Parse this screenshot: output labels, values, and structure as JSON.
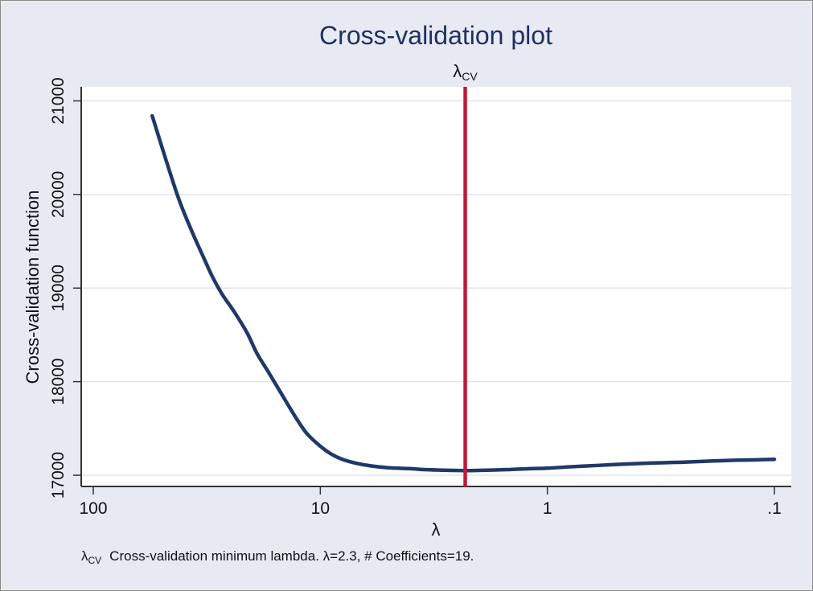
{
  "chart_data": {
    "type": "line",
    "title": "Cross-validation plot",
    "xlabel": "λ",
    "ylabel": "Cross-validation function",
    "x_scale": "log-reversed",
    "xlim": [
      100,
      0.1
    ],
    "ylim": [
      16880,
      21150
    ],
    "x_ticks": [
      100,
      10,
      1,
      0.1
    ],
    "x_tick_labels": [
      "100",
      "10",
      "1",
      ".1"
    ],
    "y_ticks": [
      17000,
      18000,
      19000,
      20000,
      21000
    ],
    "y_tick_labels": [
      "17000",
      "18000",
      "19000",
      "20000",
      "21000"
    ],
    "grid": true,
    "series": [
      {
        "x": [
          55,
          48,
          42,
          37,
          33,
          30,
          27,
          24,
          21,
          19,
          17,
          15,
          13,
          11.5,
          10,
          9,
          8,
          7,
          6,
          5,
          4,
          3.5,
          3,
          2.3,
          2,
          1.5,
          1.2,
          1,
          0.8,
          0.6,
          0.5,
          0.4,
          0.3,
          0.25,
          0.2,
          0.15,
          0.12,
          0.1
        ],
        "y": [
          20840,
          20380,
          19950,
          19620,
          19350,
          19130,
          18930,
          18750,
          18520,
          18300,
          18110,
          17890,
          17640,
          17450,
          17310,
          17230,
          17170,
          17130,
          17100,
          17080,
          17070,
          17060,
          17055,
          17050,
          17052,
          17060,
          17070,
          17075,
          17090,
          17105,
          17115,
          17125,
          17135,
          17140,
          17150,
          17160,
          17165,
          17170
        ],
        "color": "#1f3968"
      }
    ],
    "reference_lines": [
      {
        "x": 2.3,
        "label": "λ",
        "label_sub": "CV",
        "color": "#c0183a"
      }
    ],
    "note": {
      "symbol": "λ",
      "symbol_sub": "CV",
      "text": "Cross-validation minimum lambda.  λ=2.3, # Coefficients=19."
    }
  }
}
